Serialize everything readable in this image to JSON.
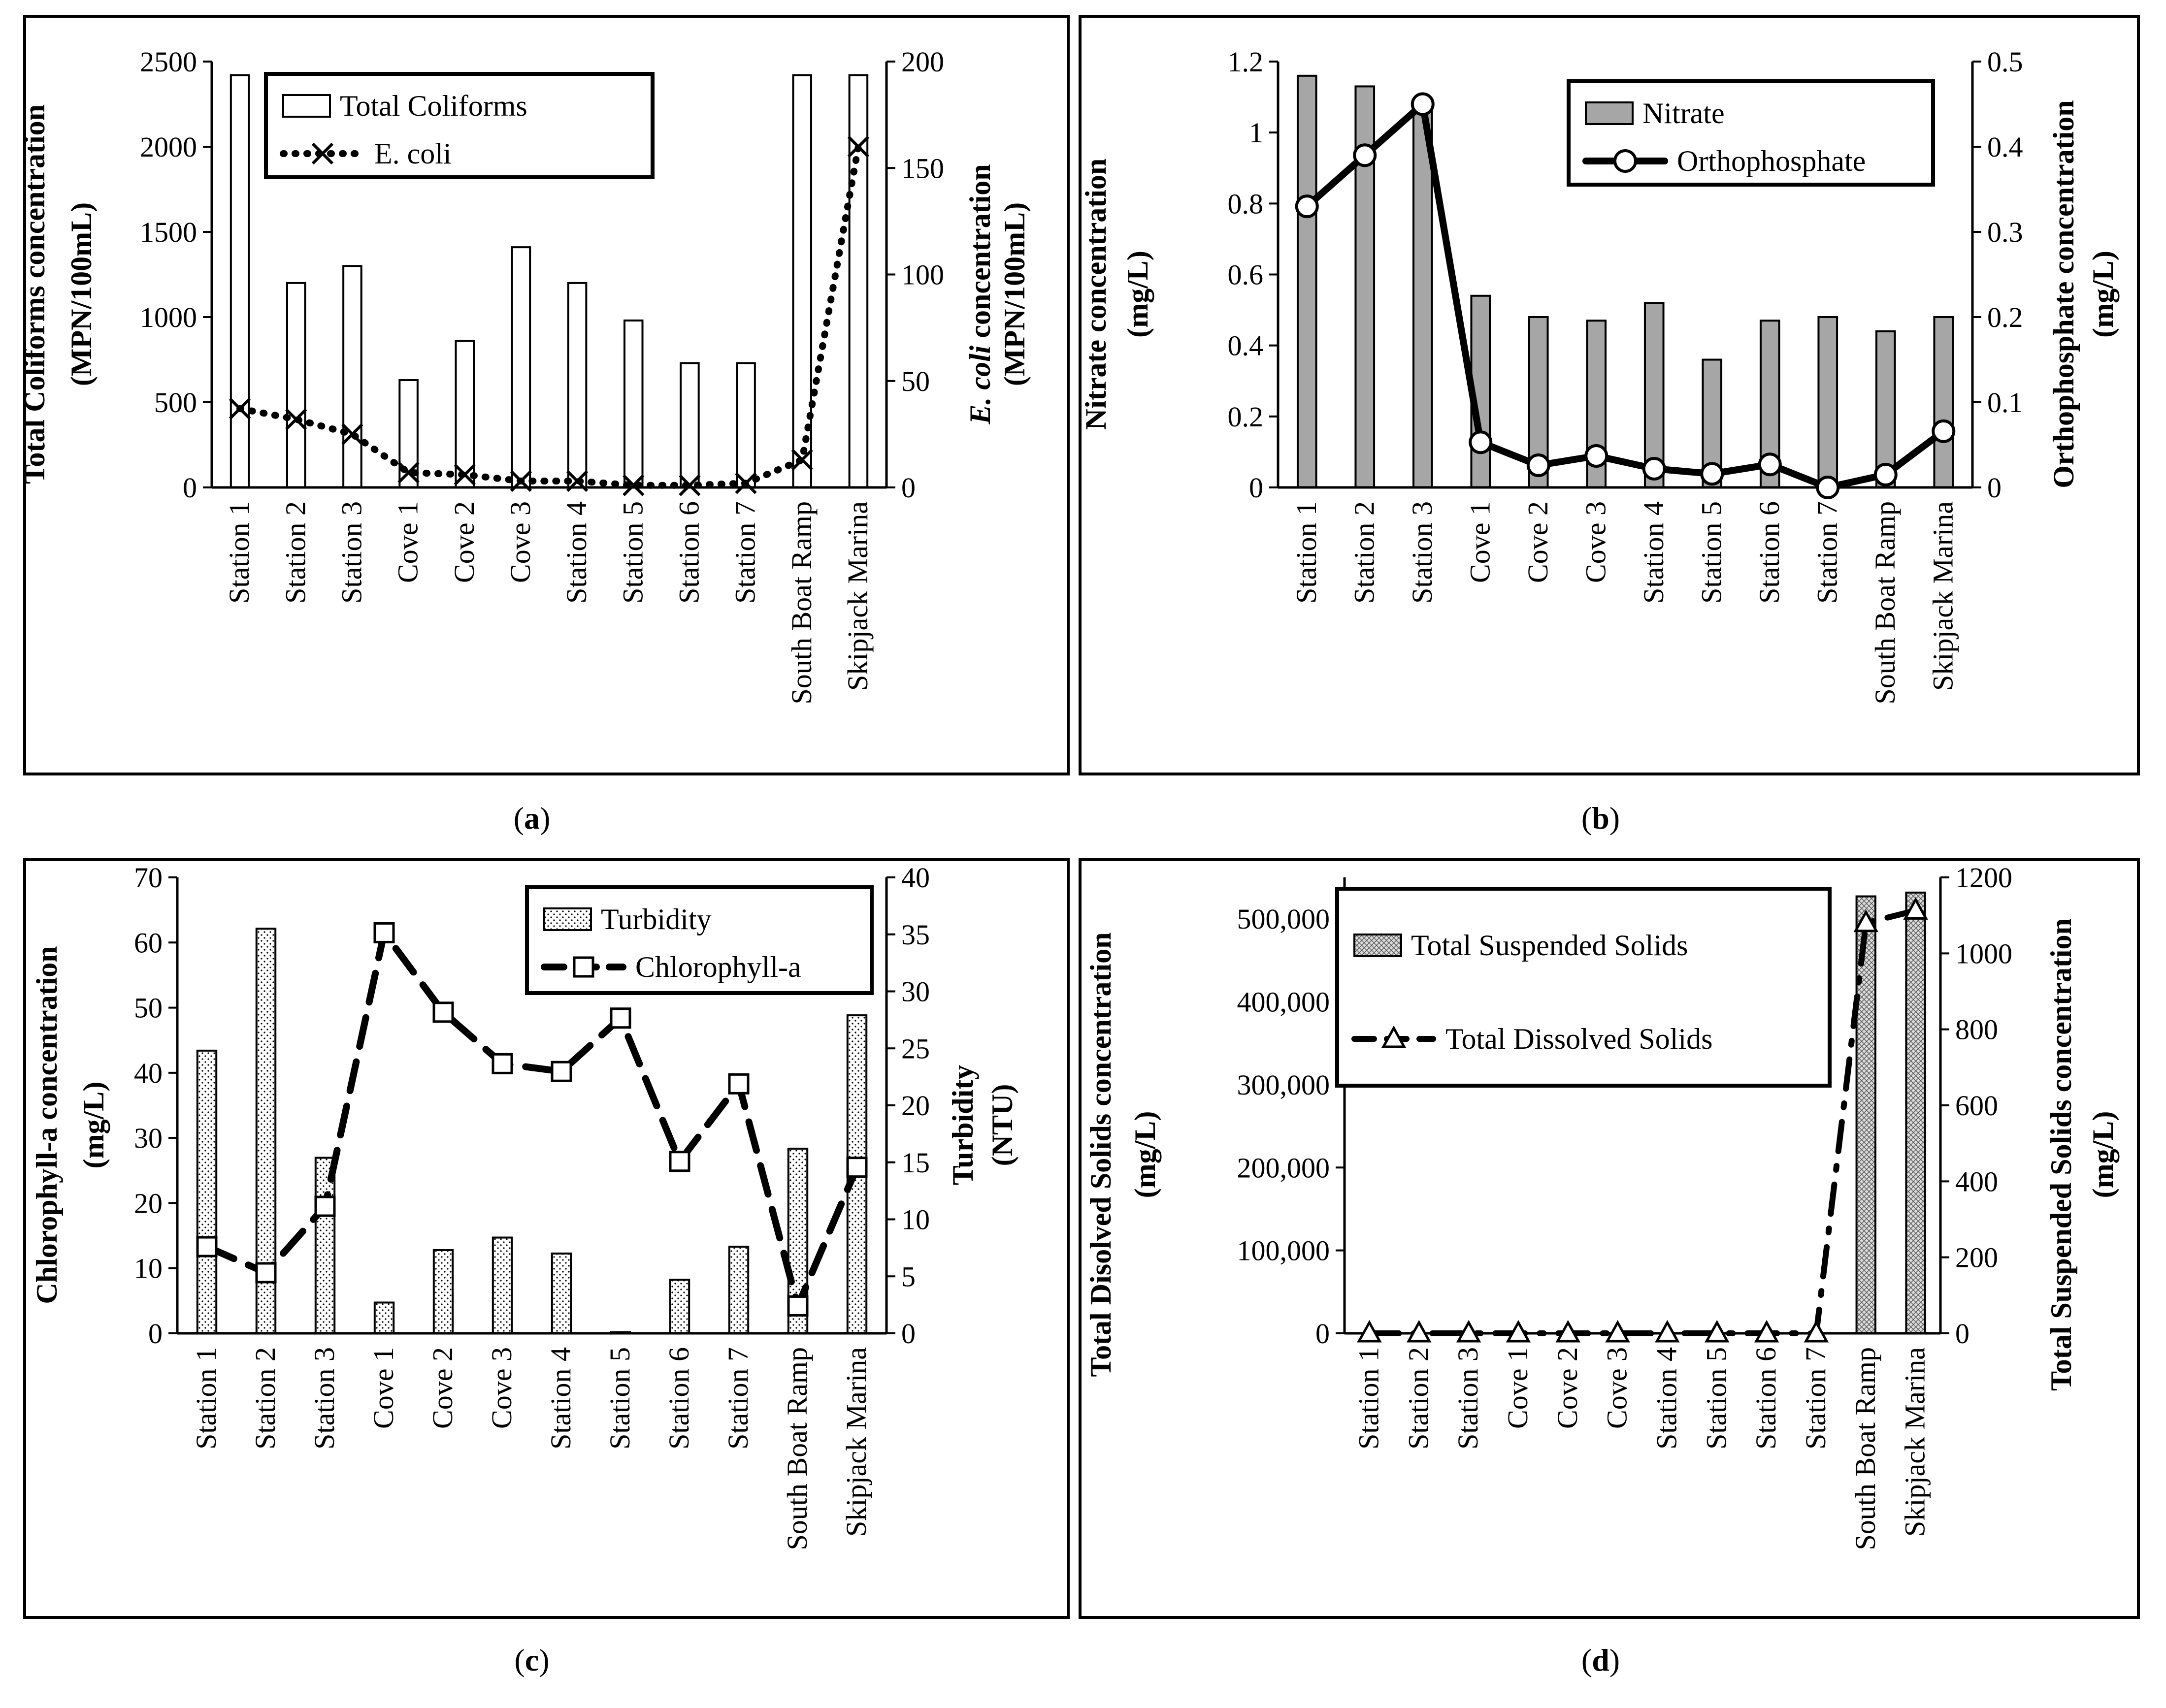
{
  "charts": [
    {
      "id": "a",
      "caption_letter": "a",
      "left_axis_label_1": "Total Coliforms concentration",
      "left_axis_label_2": "(MPN/100mL)",
      "right_axis_label_1": "E. coli",
      "right_axis_label_1_rest": " concentration",
      "right_axis_label_2": "(MPN/100mL)",
      "legend_bar": "Total Coliforms",
      "legend_line": "E. coli"
    },
    {
      "id": "b",
      "caption_letter": "b",
      "left_axis_label_1": "Nitrate concentration",
      "left_axis_label_2": "(mg/L)",
      "right_axis_label_1": "Orthophosphate concentration",
      "right_axis_label_2": "(mg/L)",
      "legend_bar": "Nitrate",
      "legend_line": "Orthophosphate"
    },
    {
      "id": "c",
      "caption_letter": "c",
      "left_axis_label_1": "Chlorophyll-a concentration",
      "left_axis_label_2": "(mg/L)",
      "right_axis_label_1": "Turbidity",
      "right_axis_label_2": "(NTU)",
      "legend_bar": "Turbidity",
      "legend_line": "Chlorophyll-a"
    },
    {
      "id": "d",
      "caption_letter": "d",
      "left_axis_label_1": "Total Disolved Solids concentration",
      "left_axis_label_2": "(mg/L)",
      "right_axis_label_1": "Total Suspended Solids concentration",
      "right_axis_label_2": "(mg/L)",
      "legend_bar": "Total Suspended Solids",
      "legend_line": "Total Dissolved Solids"
    }
  ],
  "chart_data": [
    {
      "type": "bar+line",
      "panel": "a",
      "categories": [
        "Station 1",
        "Station 2",
        "Station 3",
        "Cove 1",
        "Cove 2",
        "Cove 3",
        "Station 4",
        "Station 5",
        "Station 6",
        "Station 7",
        "South Boat Ramp",
        "Skipjack Marina"
      ],
      "left_axis": {
        "label": "Total Coliforms concentration (MPN/100mL)",
        "ylim": [
          0,
          2500
        ],
        "ticks": [
          "0",
          "500",
          "1000",
          "1500",
          "2000",
          "2500"
        ],
        "tick_values": [
          0,
          500,
          1000,
          1500,
          2000,
          2500
        ]
      },
      "right_axis": {
        "label": "E. coli concentration (MPN/100mL)",
        "ylim": [
          0,
          200
        ],
        "ticks": [
          "0",
          "50",
          "100",
          "150",
          "200"
        ],
        "tick_values": [
          0,
          50,
          100,
          150,
          200
        ]
      },
      "bar_series": {
        "name": "Total Coliforms",
        "axis": "left",
        "values": [
          2420,
          1200,
          1300,
          630,
          860,
          1410,
          1200,
          980,
          730,
          730,
          2420,
          2420
        ]
      },
      "line_series": {
        "name": "E. coli",
        "axis": "right",
        "marker": "x",
        "style": "dotted",
        "values": [
          37,
          32,
          25,
          7,
          6,
          3,
          3,
          1,
          1,
          2,
          13,
          160
        ]
      }
    },
    {
      "type": "bar+line",
      "panel": "b",
      "categories": [
        "Station 1",
        "Station 2",
        "Station 3",
        "Cove 1",
        "Cove 2",
        "Cove 3",
        "Station 4",
        "Station 5",
        "Station 6",
        "Station 7",
        "South Boat Ramp",
        "Skipjack Marina"
      ],
      "left_axis": {
        "label": "Nitrate concentration (mg/L)",
        "ylim": [
          0,
          1.2
        ],
        "ticks": [
          "0",
          "0.2",
          "0.4",
          "0.6",
          "0.8",
          "1",
          "1.2"
        ],
        "tick_values": [
          0,
          0.2,
          0.4,
          0.6,
          0.8,
          1,
          1.2
        ]
      },
      "right_axis": {
        "label": "Orthophosphate concentration (mg/L)",
        "ylim": [
          0,
          0.5
        ],
        "ticks": [
          "0",
          "0.1",
          "0.2",
          "0.3",
          "0.4",
          "0.5"
        ],
        "tick_values": [
          0,
          0.1,
          0.2,
          0.3,
          0.4,
          0.5
        ]
      },
      "bar_series": {
        "name": "Nitrate",
        "axis": "left",
        "values": [
          1.16,
          1.13,
          1.07,
          0.54,
          0.48,
          0.47,
          0.52,
          0.36,
          0.47,
          0.48,
          0.44,
          0.48
        ]
      },
      "line_series": {
        "name": "Orthophosphate",
        "axis": "right",
        "marker": "circle",
        "style": "solid",
        "values": [
          0.33,
          0.39,
          0.45,
          0.053,
          0.026,
          0.037,
          0.022,
          0.016,
          0.027,
          0.0,
          0.015,
          0.066
        ]
      }
    },
    {
      "type": "bar+line",
      "panel": "c",
      "categories": [
        "Station 1",
        "Station 2",
        "Station 3",
        "Cove 1",
        "Cove 2",
        "Cove 3",
        "Station 4",
        "Station 5",
        "Station 6",
        "Station 7",
        "South Boat Ramp",
        "Skipjack Marina"
      ],
      "left_axis": {
        "label": "Chlorophyll-a concentration (mg/L)",
        "ylim": [
          0,
          70
        ],
        "ticks": [
          "0",
          "10",
          "20",
          "30",
          "40",
          "50",
          "60",
          "70"
        ],
        "tick_values": [
          0,
          10,
          20,
          30,
          40,
          50,
          60,
          70
        ]
      },
      "right_axis": {
        "label": "Turbidity (NTU)",
        "ylim": [
          0,
          40
        ],
        "ticks": [
          "0",
          "5",
          "10",
          "15",
          "20",
          "25",
          "30",
          "35",
          "40"
        ],
        "tick_values": [
          0,
          5,
          10,
          15,
          20,
          25,
          30,
          35,
          40
        ]
      },
      "bar_series": {
        "name": "Turbidity",
        "axis": "right",
        "values": [
          24.8,
          35.5,
          15.4,
          2.7,
          7.3,
          8.4,
          7.0,
          0.1,
          4.7,
          7.6,
          16.2,
          27.9
        ]
      },
      "line_series": {
        "name": "Chlorophyll-a",
        "axis": "left",
        "marker": "square",
        "style": "dashed",
        "values": [
          13.3,
          9.3,
          19.5,
          61.5,
          49.3,
          41.4,
          40.2,
          48.4,
          26.4,
          38.3,
          4.2,
          25.5
        ]
      }
    },
    {
      "type": "bar+line",
      "panel": "d",
      "categories": [
        "Station 1",
        "Station 2",
        "Station 3",
        "Cove 1",
        "Cove 2",
        "Cove 3",
        "Station 4",
        "Station 5",
        "Station 6",
        "Station 7",
        "South Boat Ramp",
        "Skipjack Marina"
      ],
      "left_axis": {
        "label": "Total Disolved Solids concentration (mg/L)",
        "ylim": [
          0,
          550000
        ],
        "ticks": [
          "0",
          "100,000",
          "200,000",
          "300,000",
          "400,000",
          "500,000"
        ],
        "tick_values": [
          0,
          100000,
          200000,
          300000,
          400000,
          500000
        ]
      },
      "right_axis": {
        "label": "Total Suspended Solids concentration (mg/L)",
        "ylim": [
          0,
          1200
        ],
        "ticks": [
          "0",
          "200",
          "400",
          "600",
          "800",
          "1000",
          "1200"
        ],
        "tick_values": [
          0,
          200,
          400,
          600,
          800,
          1000,
          1200
        ]
      },
      "bar_series": {
        "name": "Total Suspended Solids",
        "axis": "right",
        "values": [
          0,
          0,
          0,
          0,
          0,
          0,
          0,
          0,
          0,
          0,
          1150,
          1160
        ]
      },
      "line_series": {
        "name": "Total Dissolved Solids",
        "axis": "left",
        "marker": "triangle",
        "style": "dash-dot",
        "values": [
          0,
          0,
          0,
          0,
          0,
          0,
          0,
          0,
          0,
          0,
          495000,
          510000
        ]
      }
    }
  ]
}
